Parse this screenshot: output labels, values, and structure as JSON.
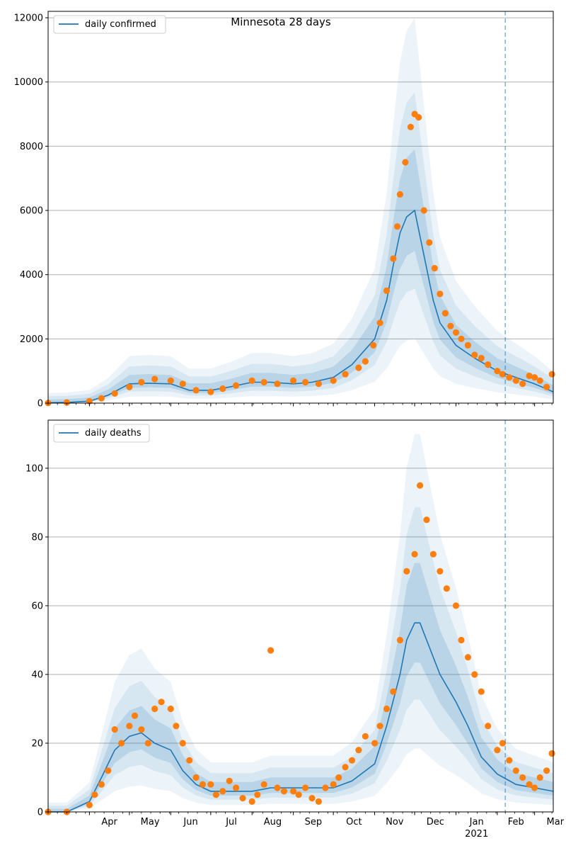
{
  "chart_data": [
    {
      "type": "line",
      "title": "Minnesota 28 days",
      "xlabel": "",
      "ylabel": "",
      "xlim": [
        "2020-03-01",
        "2021-03-15"
      ],
      "ylim": [
        0,
        12200
      ],
      "yticks": [
        0,
        2000,
        4000,
        6000,
        8000,
        10000,
        12000
      ],
      "grid": "horizontal",
      "legend_position": "top-left",
      "vline_date": "2021-02-07",
      "series": [
        {
          "name": "daily confirmed",
          "x": [
            "2020-03-01",
            "2020-03-15",
            "2020-04-01",
            "2020-04-15",
            "2020-05-01",
            "2020-05-15",
            "2020-06-01",
            "2020-06-15",
            "2020-07-01",
            "2020-07-15",
            "2020-08-01",
            "2020-08-15",
            "2020-09-01",
            "2020-09-15",
            "2020-10-01",
            "2020-10-15",
            "2020-11-01",
            "2020-11-10",
            "2020-11-15",
            "2020-11-20",
            "2020-11-25",
            "2020-12-01",
            "2020-12-05",
            "2020-12-10",
            "2020-12-15",
            "2020-12-20",
            "2021-01-01",
            "2021-01-15",
            "2021-02-01",
            "2021-02-15",
            "2021-03-01",
            "2021-03-15"
          ],
          "y": [
            10,
            20,
            60,
            250,
            600,
            620,
            600,
            400,
            400,
            500,
            650,
            650,
            600,
            650,
            800,
            1200,
            2000,
            3200,
            4300,
            5300,
            5800,
            6000,
            5200,
            4200,
            3200,
            2500,
            1800,
            1400,
            1000,
            800,
            600,
            350
          ]
        },
        {
          "name": "",
          "x": [
            "2020-03-01",
            "2020-03-15",
            "2020-04-01",
            "2020-04-10",
            "2020-04-20",
            "2020-05-01",
            "2020-05-10",
            "2020-05-20",
            "2020-06-01",
            "2020-06-10",
            "2020-06-20",
            "2020-07-01",
            "2020-07-10",
            "2020-07-20",
            "2020-08-01",
            "2020-08-10",
            "2020-08-20",
            "2020-09-01",
            "2020-09-10",
            "2020-09-20",
            "2020-10-01",
            "2020-10-10",
            "2020-10-20",
            "2020-10-25",
            "2020-10-31",
            "2020-11-05",
            "2020-11-10",
            "2020-11-15",
            "2020-11-18",
            "2020-11-20",
            "2020-11-24",
            "2020-11-28",
            "2020-12-01",
            "2020-12-04",
            "2020-12-08",
            "2020-12-12",
            "2020-12-16",
            "2020-12-20",
            "2020-12-24",
            "2020-12-28",
            "2021-01-01",
            "2021-01-05",
            "2021-01-10",
            "2021-01-15",
            "2021-01-20",
            "2021-01-25",
            "2021-02-01",
            "2021-02-05",
            "2021-02-10",
            "2021-02-15",
            "2021-02-20",
            "2021-02-25",
            "2021-03-01",
            "2021-03-05",
            "2021-03-10",
            "2021-03-14"
          ],
          "y": [
            5,
            20,
            60,
            150,
            300,
            500,
            650,
            750,
            700,
            600,
            400,
            350,
            450,
            550,
            700,
            650,
            600,
            700,
            650,
            600,
            700,
            900,
            1100,
            1300,
            1800,
            2500,
            3500,
            4500,
            5500,
            6500,
            7500,
            8600,
            9000,
            8900,
            6000,
            5000,
            4200,
            3400,
            2800,
            2400,
            2200,
            2000,
            1800,
            1500,
            1400,
            1200,
            1000,
            900,
            800,
            700,
            600,
            850,
            800,
            700,
            500,
            900
          ]
        }
      ]
    },
    {
      "type": "line",
      "title": "",
      "xlabel": "",
      "ylabel": "",
      "xlim": [
        "2020-03-01",
        "2021-03-15"
      ],
      "ylim": [
        0,
        114
      ],
      "yticks": [
        0,
        20,
        40,
        60,
        80,
        100
      ],
      "grid": "horizontal",
      "legend_position": "top-left",
      "vline_date": "2021-02-07",
      "x_tick_labels": [
        "Apr",
        "May",
        "Jun",
        "Jul",
        "Aug",
        "Sep",
        "Oct",
        "Nov",
        "Dec",
        "Jan",
        "Feb",
        "Mar"
      ],
      "x_tick_year": "2021",
      "series": [
        {
          "name": "daily deaths",
          "x": [
            "2020-03-01",
            "2020-03-15",
            "2020-04-01",
            "2020-04-10",
            "2020-04-20",
            "2020-05-01",
            "2020-05-10",
            "2020-05-20",
            "2020-06-01",
            "2020-06-10",
            "2020-06-20",
            "2020-07-01",
            "2020-07-15",
            "2020-08-01",
            "2020-08-15",
            "2020-09-01",
            "2020-09-15",
            "2020-10-01",
            "2020-10-15",
            "2020-11-01",
            "2020-11-10",
            "2020-11-20",
            "2020-11-25",
            "2020-12-01",
            "2020-12-05",
            "2020-12-10",
            "2020-12-15",
            "2020-12-20",
            "2021-01-01",
            "2021-01-10",
            "2021-01-20",
            "2021-02-01",
            "2021-02-15",
            "2021-03-01",
            "2021-03-15"
          ],
          "y": [
            0,
            0,
            3,
            10,
            18,
            22,
            23,
            20,
            18,
            12,
            8,
            6,
            6,
            6,
            7,
            7,
            7,
            7,
            9,
            14,
            25,
            40,
            50,
            55,
            55,
            50,
            45,
            40,
            32,
            25,
            16,
            11,
            8,
            7,
            6
          ]
        },
        {
          "name": "",
          "x": [
            "2020-03-01",
            "2020-03-15",
            "2020-04-01",
            "2020-04-05",
            "2020-04-10",
            "2020-04-15",
            "2020-04-20",
            "2020-04-25",
            "2020-05-01",
            "2020-05-05",
            "2020-05-10",
            "2020-05-15",
            "2020-05-20",
            "2020-05-25",
            "2020-06-01",
            "2020-06-05",
            "2020-06-10",
            "2020-06-15",
            "2020-06-20",
            "2020-06-25",
            "2020-07-01",
            "2020-07-05",
            "2020-07-10",
            "2020-07-15",
            "2020-07-20",
            "2020-07-25",
            "2020-08-01",
            "2020-08-05",
            "2020-08-10",
            "2020-08-15",
            "2020-08-20",
            "2020-08-25",
            "2020-09-01",
            "2020-09-05",
            "2020-09-10",
            "2020-09-15",
            "2020-09-20",
            "2020-09-25",
            "2020-10-01",
            "2020-10-05",
            "2020-10-10",
            "2020-10-15",
            "2020-10-20",
            "2020-10-25",
            "2020-11-01",
            "2020-11-05",
            "2020-11-10",
            "2020-11-15",
            "2020-11-20",
            "2020-11-25",
            "2020-12-01",
            "2020-12-05",
            "2020-12-10",
            "2020-12-15",
            "2020-12-20",
            "2020-12-25",
            "2021-01-01",
            "2021-01-05",
            "2021-01-10",
            "2021-01-15",
            "2021-01-20",
            "2021-01-25",
            "2021-02-01",
            "2021-02-05",
            "2021-02-10",
            "2021-02-15",
            "2021-02-20",
            "2021-02-25",
            "2021-03-01",
            "2021-03-05",
            "2021-03-10",
            "2021-03-14"
          ],
          "y": [
            0,
            0,
            2,
            5,
            8,
            12,
            24,
            20,
            25,
            28,
            24,
            20,
            30,
            32,
            30,
            25,
            20,
            15,
            10,
            8,
            8,
            5,
            6,
            9,
            7,
            4,
            3,
            5,
            8,
            47,
            7,
            6,
            6,
            5,
            7,
            4,
            3,
            7,
            8,
            10,
            13,
            15,
            18,
            22,
            20,
            25,
            30,
            35,
            50,
            70,
            75,
            95,
            85,
            75,
            70,
            65,
            60,
            50,
            45,
            40,
            35,
            25,
            18,
            20,
            15,
            12,
            10,
            8,
            7,
            10,
            12,
            17
          ]
        }
      ]
    }
  ]
}
